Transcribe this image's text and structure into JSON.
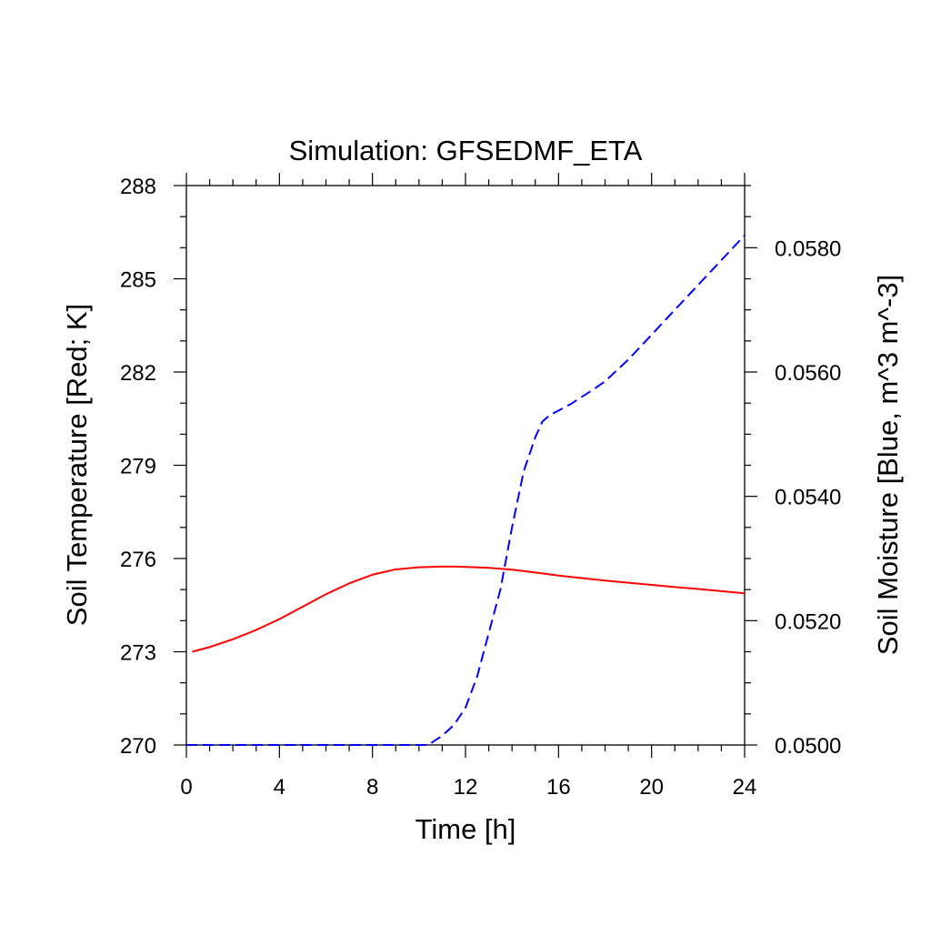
{
  "chart_data": {
    "type": "line",
    "title": "Simulation: GFSEDMF_ETA",
    "xlabel": "Time [h]",
    "ylabel": "Soil Temperature [Red; K]",
    "y2label": "Soil Moisture [Blue, m^3 m^-3]",
    "xlim": [
      0,
      24
    ],
    "ylim": [
      270,
      288
    ],
    "y2lim": [
      0.05,
      0.059
    ],
    "x_ticks": [
      "0",
      "4",
      "8",
      "12",
      "16",
      "20",
      "24"
    ],
    "y_ticks": [
      "270",
      "273",
      "276",
      "279",
      "282",
      "285",
      "288"
    ],
    "y2_ticks": [
      "0.0500",
      "0.0520",
      "0.0540",
      "0.0560",
      "0.0580"
    ],
    "grid": false,
    "series": [
      {
        "axis": "left",
        "color": "#ff0000",
        "style": "solid",
        "x": [
          0.25,
          1,
          2,
          3,
          4,
          5,
          6,
          7,
          8,
          9,
          10,
          11,
          11.5,
          12,
          13,
          14,
          15,
          16,
          17,
          18,
          19,
          20,
          21,
          22,
          23,
          24
        ],
        "y": [
          273.0,
          273.15,
          273.4,
          273.7,
          274.05,
          274.45,
          274.85,
          275.2,
          275.48,
          275.65,
          275.72,
          275.74,
          275.74,
          275.73,
          275.7,
          275.64,
          275.55,
          275.45,
          275.37,
          275.29,
          275.22,
          275.15,
          275.08,
          275.02,
          274.95,
          274.88
        ]
      },
      {
        "axis": "right",
        "color": "#0000ff",
        "style": "dashed",
        "x": [
          0,
          1,
          2,
          4,
          6,
          8,
          10,
          10.4,
          11,
          11.5,
          12,
          12.5,
          13,
          13.5,
          14,
          14.5,
          15,
          15.3,
          15.6,
          16,
          16.5,
          17,
          17.5,
          18,
          19,
          20,
          21,
          22,
          23,
          24
        ],
        "y": [
          0.05,
          0.05,
          0.05,
          0.05,
          0.05,
          0.05,
          0.05,
          0.05,
          0.05015,
          0.05032,
          0.0506,
          0.0511,
          0.0518,
          0.0525,
          0.0535,
          0.0544,
          0.05495,
          0.0552,
          0.0553,
          0.05538,
          0.05548,
          0.0556,
          0.05572,
          0.05585,
          0.0562,
          0.0566,
          0.057,
          0.0574,
          0.0578,
          0.0582
        ]
      }
    ]
  }
}
